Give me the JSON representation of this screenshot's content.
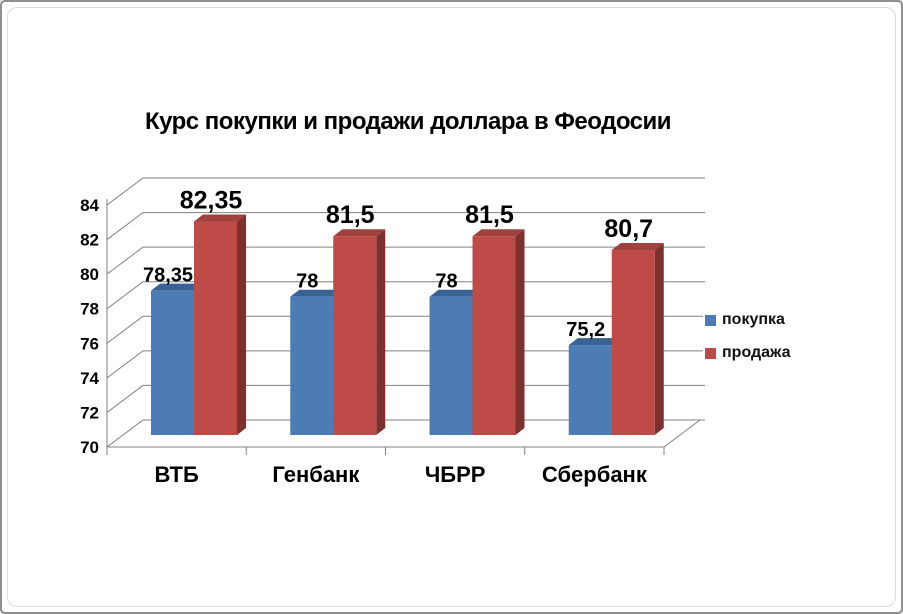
{
  "window": {
    "background": "#ffffff",
    "border_color": "#8f8f8f"
  },
  "chart_data": {
    "type": "bar",
    "style": "3d-clustered-column",
    "title": "Курс покупки и продажи доллара в Феодосии",
    "categories": [
      "ВТБ",
      "Генбанк",
      "ЧБРР",
      "Сбербанк"
    ],
    "series": [
      {
        "name": "покупка",
        "values": [
          78.35,
          78,
          78,
          75.2
        ],
        "labels": [
          "78,35",
          "78",
          "78",
          "75,2"
        ],
        "color_front": "#4D7CB5",
        "color_top": "#3A6295",
        "color_side": "#2F4E76"
      },
      {
        "name": "продажа",
        "values": [
          82.35,
          81.5,
          81.5,
          80.7
        ],
        "labels": [
          "82,35",
          "81,5",
          "81,5",
          "80,7"
        ],
        "color_front": "#BE4B48",
        "color_top": "#A0413E",
        "color_side": "#7E302E"
      }
    ],
    "y_axis": {
      "min": 70,
      "max": 84,
      "step": 2,
      "tick_labels": [
        "70",
        "72",
        "74",
        "76",
        "78",
        "80",
        "82",
        "84"
      ]
    },
    "x_axis": {
      "label": ""
    },
    "legend": {
      "position": "right"
    },
    "grid": true,
    "grid_color": "#808080",
    "axis_color": "#808080",
    "text_color": "#000000"
  }
}
